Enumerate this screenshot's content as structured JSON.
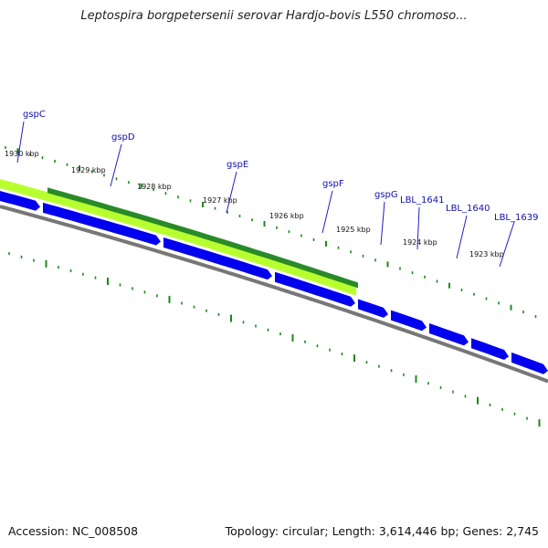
{
  "title": "Leptospira borgpetersenii serovar Hardjo-bovis L550 chromoso...",
  "footer": {
    "accession": "Accession: NC_008508",
    "topology": "Topology: circular; Length: 3,614,446 bp; Genes: 2,745"
  },
  "colors": {
    "cds": "#0000ee",
    "highlight_light": "#b8ff30",
    "highlight_dark": "#2a8a2a",
    "backbone": "#777777",
    "ticks": "#1a8a1a",
    "gene_label": "#1010b0",
    "leader": "#2020c0"
  },
  "ruler": {
    "labels": [
      "1930 kbp",
      "1929 kbp",
      "1928 kbp",
      "1927 kbp",
      "1926 kbp",
      "1925 kbp",
      "1924 kbp",
      "1923 kbp"
    ]
  },
  "genes": [
    "gspC",
    "gspD",
    "gspE",
    "gspF",
    "gspG",
    "LBL_1641",
    "LBL_1640",
    "LBL_1639"
  ]
}
